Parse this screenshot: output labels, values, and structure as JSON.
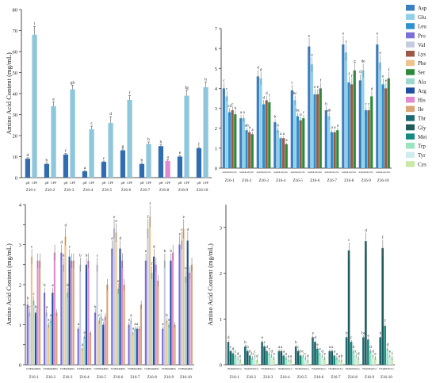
{
  "colors": {
    "Asp": "#3a7fc0",
    "Glu": "#8fd0e8",
    "Leu": "#2f8fcf",
    "Pro": "#7b6fd8",
    "Val": "#c7cbe0",
    "Lys": "#9c5a45",
    "Phe": "#f0c28e",
    "Ser": "#2e8a3a",
    "Ala": "#9ed8cf",
    "Arg": "#1f4fa0",
    "His": "#e08ad0",
    "Ile": "#d9a57a",
    "Thr": "#1e6a74",
    "Gly": "#1f5a5a",
    "Met": "#138a82",
    "Trp": "#9ae5c0",
    "Tyr": "#cfecef",
    "Cys": "#c8e8a8"
  },
  "legend": [
    "Asp",
    "Glu",
    "Leu",
    "Pro",
    "Val",
    "Lys",
    "Phe",
    "Ser",
    "Ala",
    "Arg",
    "His",
    "Ile",
    "Thr",
    "Gly",
    "Met",
    "Trp",
    "Tyr",
    "Cys"
  ],
  "chart_data": [
    {
      "type": "bar",
      "ylabel": "Amino Acid  Content  (mg/mL)",
      "ylim": [
        0,
        80
      ],
      "yticks": [
        0,
        10,
        20,
        30,
        40,
        50,
        60,
        70,
        80
      ],
      "groups": [
        "Z16-1",
        "Z16-2",
        "Z16-3",
        "Z16-4",
        "Z16-5",
        "Z16-6",
        "Z16-7",
        "Z16-8",
        "Z16-9",
        "Z16-10"
      ],
      "sublabels": [
        "pH",
        "CPP"
      ],
      "series": [
        {
          "name": "pH",
          "values": [
            9,
            6.5,
            11,
            3,
            7.5,
            13,
            6.5,
            15,
            10,
            14
          ],
          "errors": [
            0.5,
            0.4,
            0.5,
            0.4,
            0.4,
            0.6,
            0.4,
            0.6,
            0.5,
            0.6
          ],
          "letters": [
            "d",
            "b",
            "f",
            "a",
            "c",
            "g",
            "b",
            "h",
            "e",
            "f"
          ],
          "color": "#2f6db0"
        },
        {
          "name": "CPP",
          "values": [
            68,
            34,
            42,
            23,
            26,
            37,
            16,
            8,
            39,
            43
          ],
          "errors": [
            4,
            2,
            2,
            1.5,
            3,
            2,
            1,
            0.5,
            2.5,
            2.5
          ],
          "letters": [
            "i",
            "e",
            "gh",
            "c",
            "d",
            "f",
            "b",
            "a",
            "fg",
            "h"
          ],
          "color": "#8ec6dc",
          "highlight": {
            "index": 7,
            "color": "#e08ad0"
          }
        }
      ]
    },
    {
      "type": "bar",
      "ylim": [
        0,
        7
      ],
      "yticks": [
        0,
        1,
        2,
        3,
        4,
        5,
        6,
        7
      ],
      "groups": [
        "Z16-1",
        "Z16-2",
        "Z16-3",
        "Z16-4",
        "Z16-5",
        "Z16-6",
        "Z16-7",
        "Z16-8",
        "Z16-9",
        "Z16-10"
      ],
      "series": [
        {
          "name": "Asp",
          "values": [
            4.0,
            2.5,
            4.6,
            2.3,
            3.9,
            6.1,
            2.9,
            6.2,
            4.4,
            6.2
          ]
        },
        {
          "name": "Glu",
          "values": [
            3.6,
            2.5,
            4.5,
            1.9,
            3.4,
            5.2,
            2.6,
            5.8,
            4.9,
            5.3
          ]
        },
        {
          "name": "Leu",
          "values": [
            2.8,
            1.9,
            3.2,
            1.5,
            2.6,
            3.7,
            1.8,
            4.3,
            2.9,
            4.2
          ]
        },
        {
          "name": "Lys",
          "values": [
            2.9,
            1.8,
            3.4,
            1.5,
            2.4,
            3.7,
            1.8,
            4.2,
            2.9,
            4.0
          ]
        },
        {
          "name": "Ser",
          "values": [
            2.7,
            1.7,
            3.3,
            1.2,
            2.5,
            4.0,
            1.9,
            4.9,
            3.6,
            4.5
          ]
        }
      ],
      "letters": [
        [
          "c",
          "c",
          "cd",
          "c",
          "b"
        ],
        [
          "a",
          "a",
          "ab",
          "a",
          "a"
        ],
        [
          "d",
          "d",
          "d",
          "d",
          "c"
        ],
        [
          "b",
          "b",
          "a",
          "a",
          "a"
        ],
        [
          "c",
          "bc",
          "bc",
          "b",
          "c"
        ],
        [
          "e",
          "e",
          "e",
          "e",
          "f"
        ],
        [
          "b",
          "ab",
          "a",
          "a",
          "a"
        ],
        [
          "e",
          "f",
          "f",
          "f",
          "g"
        ],
        [
          "d",
          "de",
          "c",
          "c",
          "d"
        ],
        [
          "e",
          "e",
          "e",
          "e",
          "f"
        ]
      ]
    },
    {
      "type": "bar",
      "ylabel": "Amino Acid  Content  (mg/mL)",
      "ylim": [
        0,
        4
      ],
      "yticks": [
        0,
        0.5,
        1,
        1.5,
        2,
        2.5,
        3,
        3.5,
        4
      ],
      "ytick_labels": [
        "0",
        "",
        "1",
        "",
        "2",
        "",
        "3",
        "",
        "4"
      ],
      "groups": [
        "Z16-1",
        "Z16-2",
        "Z16-3",
        "Z16-4",
        "Z16-5",
        "Z16-6",
        "Z16-7",
        "Z16-8",
        "Z16-9",
        "Z16-10"
      ],
      "series": [
        {
          "name": "Pro",
          "values": [
            1.5,
            1.8,
            2.8,
            0.9,
            1.3,
            2.9,
            1.0,
            2.6,
            0.9,
            3.0
          ]
        },
        {
          "name": "Val",
          "values": [
            1.3,
            1.3,
            2.5,
            2.5,
            2.5,
            3.4,
            1.1,
            3.4,
            2.6,
            3.1
          ]
        },
        {
          "name": "Phe",
          "values": [
            2.7,
            1.0,
            3.2,
            0.4,
            1.1,
            3.3,
            0.8,
            3.7,
            1.1,
            3.4
          ]
        },
        {
          "name": "Ala",
          "values": [
            1.6,
            1.1,
            1.8,
            0.7,
            1.2,
            1.9,
            0.9,
            2.3,
            1.0,
            2.2
          ]
        },
        {
          "name": "Arg",
          "values": [
            1.3,
            1.8,
            2.7,
            2.5,
            1.0,
            2.9,
            0.9,
            2.7,
            2.6,
            3.1
          ]
        },
        {
          "name": "His",
          "values": [
            2.6,
            2.8,
            2.6,
            2.6,
            1.2,
            2.6,
            0.9,
            2.5,
            2.8,
            2.3
          ]
        },
        {
          "name": "Ile",
          "values": [
            2.6,
            1.3,
            2.6,
            0.8,
            2.0,
            2.0,
            1.5,
            2.1,
            1.0,
            2.5
          ]
        }
      ],
      "letters": [
        [
          "b",
          "c",
          "c",
          "c",
          "b"
        ],
        [
          "b",
          "a",
          "a",
          "a",
          "a"
        ],
        [
          "d",
          "d",
          "d",
          "d",
          "c"
        ],
        [
          "a",
          "b",
          "a",
          "a",
          "b"
        ],
        [
          "b",
          "c",
          "c",
          "b",
          "c"
        ],
        [
          "e",
          "e",
          "e",
          "e",
          "d"
        ],
        [
          "a",
          "a",
          "a",
          "a",
          "a"
        ],
        [
          "e",
          "f",
          "f",
          "f",
          "d"
        ],
        [
          "a",
          "b",
          "b",
          "a",
          "b"
        ],
        [
          "e",
          "c",
          "e",
          "e",
          "d"
        ]
      ]
    },
    {
      "type": "bar",
      "ylabel": "Amino Acid  Content  (mg/mL)",
      "ylim": [
        0,
        3.5
      ],
      "yticks": [
        0,
        1,
        2,
        3
      ],
      "groups": [
        "Z16-1",
        "Z16-2",
        "Z16-3",
        "Z16-4",
        "Z16-5",
        "Z16-6",
        "Z16-7",
        "Z16-8",
        "Z16-9",
        "Z16-10"
      ],
      "series": [
        {
          "name": "Thr",
          "values": [
            0.5,
            0.4,
            0.5,
            0.3,
            0.4,
            0.6,
            0.3,
            0.6,
            0.6,
            0.6
          ]
        },
        {
          "name": "Gly",
          "values": [
            0.3,
            0.3,
            0.4,
            0.3,
            0.3,
            0.5,
            0.3,
            2.5,
            2.7,
            2.55
          ]
        },
        {
          "name": "Met",
          "values": [
            0.25,
            0.2,
            0.3,
            0.2,
            0.2,
            0.35,
            0.2,
            0.5,
            0.55,
            0.85
          ]
        },
        {
          "name": "Trp",
          "values": [
            0.2,
            0.15,
            0.25,
            0.15,
            0.2,
            0.25,
            0.15,
            0.3,
            0.3,
            0.35
          ]
        },
        {
          "name": "Tyr",
          "values": [
            0.15,
            0.2,
            0.2,
            0.1,
            0.15,
            0.2,
            0.1,
            0.2,
            0.2,
            0.2
          ]
        },
        {
          "name": "Cys",
          "values": [
            0.1,
            0.1,
            0.15,
            0.1,
            0.1,
            0.15,
            0.1,
            0.15,
            0.15,
            0.15
          ]
        }
      ],
      "letters": [
        [
          "d",
          "c",
          "d",
          "c",
          "d",
          "e"
        ],
        [
          "b",
          "b",
          "b",
          "b",
          "c",
          "d"
        ],
        [
          "e",
          "c",
          "d",
          "c",
          "d",
          "e"
        ],
        [
          "a",
          "a",
          "a",
          "a",
          "a",
          "a"
        ],
        [
          "b",
          "c",
          "b",
          "c",
          "c",
          "d"
        ],
        [
          "e",
          "d",
          "e",
          "e",
          "d",
          "e"
        ],
        [
          "a",
          "a",
          "a",
          "a",
          "a",
          "b"
        ],
        [
          "b",
          "c",
          "c",
          "b",
          "c",
          "d"
        ],
        [
          "bc",
          "d",
          "e",
          "d",
          "d",
          "e"
        ],
        [
          "b",
          "f",
          "f",
          "d",
          "e",
          "f"
        ]
      ]
    }
  ]
}
